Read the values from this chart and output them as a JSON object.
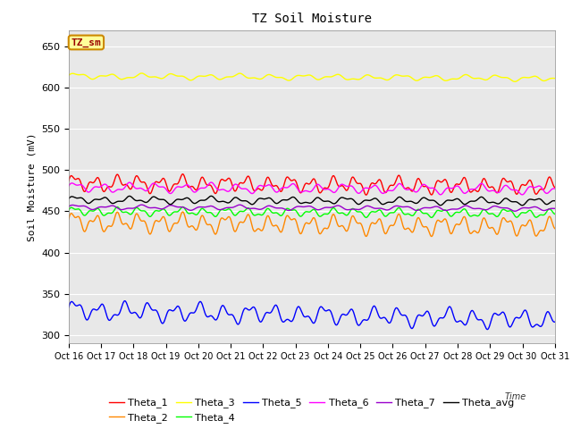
{
  "title": "TZ Soil Moisture",
  "xlabel": "Time",
  "ylabel": "Soil Moisture (mV)",
  "ylim": [
    290,
    670
  ],
  "yticks": [
    300,
    350,
    400,
    450,
    500,
    550,
    600,
    650
  ],
  "background_color": "#e8e8e8",
  "x_labels": [
    "Oct 16",
    "Oct 17",
    "Oct 18",
    "Oct 19",
    "Oct 20",
    "Oct 21",
    "Oct 22",
    "Oct 23",
    "Oct 24",
    "Oct 25",
    "Oct 26",
    "Oct 27",
    "Oct 28",
    "Oct 29",
    "Oct 30",
    "Oct 31"
  ],
  "series": {
    "Theta_1": {
      "color": "#ff0000",
      "base": 484,
      "amplitude": 7,
      "trend": -0.35,
      "freq_day": 1.5
    },
    "Theta_2": {
      "color": "#ff8800",
      "base": 437,
      "amplitude": 8,
      "trend": -0.6,
      "freq_day": 1.5
    },
    "Theta_3": {
      "color": "#ffff00",
      "base": 614,
      "amplitude": 2.5,
      "trend": -0.25,
      "freq_day": 1.0
    },
    "Theta_4": {
      "color": "#00ff00",
      "base": 450,
      "amplitude": 3.5,
      "trend": -0.25,
      "freq_day": 1.5
    },
    "Theta_5": {
      "color": "#0000ff",
      "base": 330,
      "amplitude": 8,
      "trend": -1.2,
      "freq_day": 1.3
    },
    "Theta_6": {
      "color": "#ff00ff",
      "base": 479,
      "amplitude": 4,
      "trend": -0.25,
      "freq_day": 1.2
    },
    "Theta_7": {
      "color": "#9900cc",
      "base": 455,
      "amplitude": 2,
      "trend": -0.15,
      "freq_day": 1.0
    },
    "Theta_avg": {
      "color": "#000000",
      "base": 464,
      "amplitude": 3,
      "trend": -0.2,
      "freq_day": 1.2
    }
  },
  "legend_label": "TZ_sm",
  "legend_bg": "#ffff99",
  "legend_border": "#cc8800",
  "n_points": 1440,
  "n_days": 15
}
